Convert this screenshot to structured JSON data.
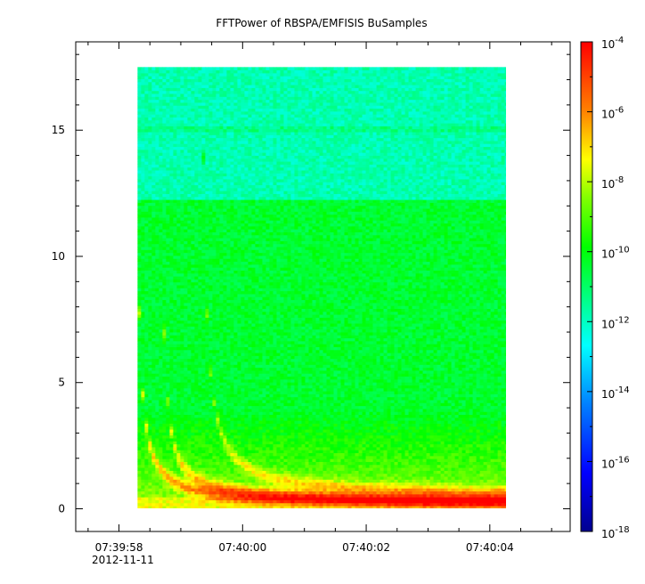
{
  "chart_data": {
    "type": "heatmap",
    "title": "FFTPower of RBSPA/EMFISIS  BuSamples",
    "xlabel": "",
    "ylabel": "",
    "x_tick_labels": [
      "07:39:58",
      "07:40:00",
      "07:40:02",
      "07:40:04"
    ],
    "x_date_label": "2012-11-11",
    "x_range": [
      "07:39:57.3",
      "07:40:05.3"
    ],
    "data_time_range": [
      "07:39:58.3",
      "07:40:04.3"
    ],
    "y_ticks": [
      0,
      5,
      10,
      15
    ],
    "ylim": [
      -0.9,
      18.5
    ],
    "data_freq_range": [
      0,
      17.5
    ],
    "colorbar": {
      "scale": "log",
      "range": [
        1e-18,
        0.0001
      ],
      "tick_base": "10",
      "tick_exponents": [
        "-4",
        "-6",
        "-8",
        "-10",
        "-12",
        "-14",
        "-16",
        "-18"
      ]
    },
    "features": [
      {
        "name": "low-band-fill",
        "freq_range": [
          0.0,
          0.5
        ],
        "level_exp": -7.5
      },
      {
        "name": "gap-band",
        "freq_range": [
          12.2,
          12.4
        ],
        "level_exp": -11.8
      },
      {
        "name": "line-15",
        "freq": 15.0,
        "level_exp": -11.3
      }
    ],
    "background_levels": [
      {
        "freq_range": [
          12.3,
          17.5
        ],
        "level_exp": -11.8
      },
      {
        "freq_range": [
          0.5,
          12.2
        ],
        "level_exp": -10.4
      }
    ]
  }
}
